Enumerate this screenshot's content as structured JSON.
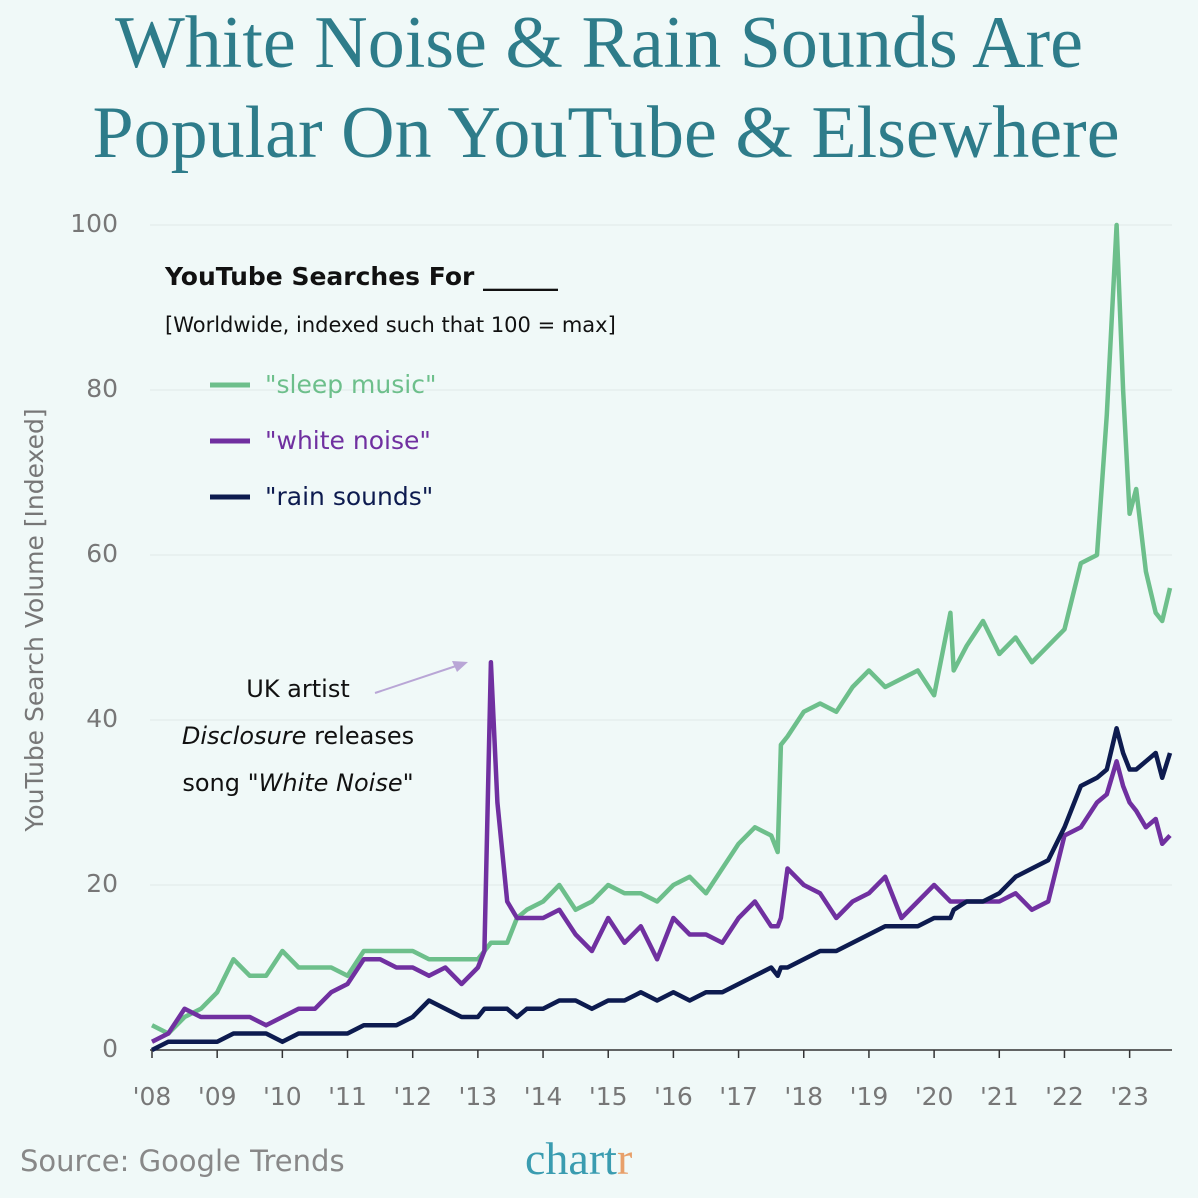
{
  "chart_data": {
    "type": "line",
    "title_lines": [
      "White Noise & Rain Sounds Are",
      "Popular On YouTube & Elsewhere"
    ],
    "subtitle": "YouTube Searches For ______",
    "note": "[Worldwide, indexed such that 100 = max]",
    "y_label": "YouTube Search Volume [Indexed]",
    "source": "Source: Google Trends",
    "brand": "chart",
    "brand_accent": "r",
    "annotation": [
      [
        {
          "text": "UK artist",
          "italic": false
        }
      ],
      [
        {
          "text": "Disclosure",
          "italic": true
        },
        {
          "text": " releases",
          "italic": false
        }
      ],
      [
        {
          "text": "song \"",
          "italic": false
        },
        {
          "text": "White Noise",
          "italic": true
        },
        {
          "text": "\"",
          "italic": false
        }
      ]
    ],
    "x": [
      2008,
      2008.25,
      2008.5,
      2008.75,
      2009,
      2009.25,
      2009.5,
      2009.75,
      2010,
      2010.25,
      2010.5,
      2010.75,
      2011,
      2011.25,
      2011.5,
      2011.75,
      2012,
      2012.25,
      2012.5,
      2012.75,
      2013,
      2013.1,
      2013.2,
      2013.3,
      2013.45,
      2013.6,
      2013.75,
      2014,
      2014.25,
      2014.5,
      2014.75,
      2015,
      2015.25,
      2015.5,
      2015.75,
      2016,
      2016.25,
      2016.5,
      2016.75,
      2017,
      2017.25,
      2017.5,
      2017.6,
      2017.65,
      2017.75,
      2018,
      2018.25,
      2018.5,
      2018.75,
      2019,
      2019.25,
      2019.5,
      2019.75,
      2020,
      2020.25,
      2020.3,
      2020.5,
      2020.75,
      2021,
      2021.25,
      2021.5,
      2021.75,
      2022,
      2022.25,
      2022.5,
      2022.65,
      2022.8,
      2022.9,
      2023,
      2023.1,
      2023.25,
      2023.4,
      2023.5,
      2023.62
    ],
    "series": [
      {
        "name": "\"sleep music\"",
        "color": "#6dbf8b",
        "values": [
          3,
          2,
          4,
          5,
          7,
          11,
          9,
          9,
          12,
          10,
          10,
          10,
          9,
          12,
          12,
          12,
          12,
          11,
          11,
          11,
          11,
          12,
          13,
          13,
          13,
          16,
          17,
          18,
          20,
          17,
          18,
          20,
          19,
          19,
          18,
          20,
          21,
          19,
          22,
          25,
          27,
          26,
          24,
          37,
          38,
          41,
          42,
          41,
          44,
          46,
          44,
          45,
          46,
          43,
          53,
          46,
          49,
          52,
          48,
          50,
          47,
          49,
          51,
          59,
          60,
          77,
          100,
          80,
          65,
          68,
          58,
          53,
          52,
          56
        ]
      },
      {
        "name": "\"white noise\"",
        "color": "#7030a0",
        "values": [
          1,
          2,
          5,
          4,
          4,
          4,
          4,
          3,
          4,
          5,
          5,
          7,
          8,
          11,
          11,
          10,
          10,
          9,
          10,
          8,
          10,
          12,
          47,
          30,
          18,
          16,
          16,
          16,
          17,
          14,
          12,
          16,
          13,
          15,
          11,
          16,
          14,
          14,
          13,
          16,
          18,
          15,
          15,
          16,
          22,
          20,
          19,
          16,
          18,
          19,
          21,
          16,
          18,
          20,
          18,
          18,
          18,
          18,
          18,
          19,
          17,
          18,
          26,
          27,
          30,
          31,
          35,
          32,
          30,
          29,
          27,
          28,
          25,
          26
        ]
      },
      {
        "name": "\"rain sounds\"",
        "color": "#0d1b4f",
        "values": [
          0,
          1,
          1,
          1,
          1,
          2,
          2,
          2,
          1,
          2,
          2,
          2,
          2,
          3,
          3,
          3,
          4,
          6,
          5,
          4,
          4,
          5,
          5,
          5,
          5,
          4,
          5,
          5,
          6,
          6,
          5,
          6,
          6,
          7,
          6,
          7,
          6,
          7,
          7,
          8,
          9,
          10,
          9,
          10,
          10,
          11,
          12,
          12,
          13,
          14,
          15,
          15,
          15,
          16,
          16,
          17,
          18,
          18,
          19,
          21,
          22,
          23,
          27,
          32,
          33,
          34,
          39,
          36,
          34,
          34,
          35,
          36,
          33,
          36
        ]
      }
    ],
    "xlim": [
      2008,
      2023.65
    ],
    "xticks": [
      {
        "value": 2008,
        "label": "'08"
      },
      {
        "value": 2009,
        "label": "'09"
      },
      {
        "value": 2010,
        "label": "'10"
      },
      {
        "value": 2011,
        "label": "'11"
      },
      {
        "value": 2012,
        "label": "'12"
      },
      {
        "value": 2013,
        "label": "'13"
      },
      {
        "value": 2014,
        "label": "'14"
      },
      {
        "value": 2015,
        "label": "'15"
      },
      {
        "value": 2016,
        "label": "'16"
      },
      {
        "value": 2017,
        "label": "'17"
      },
      {
        "value": 2018,
        "label": "'18"
      },
      {
        "value": 2019,
        "label": "'19"
      },
      {
        "value": 2020,
        "label": "'20"
      },
      {
        "value": 2021,
        "label": "'21"
      },
      {
        "value": 2022,
        "label": "'22"
      },
      {
        "value": 2023,
        "label": "'23"
      }
    ],
    "ylim": [
      0,
      100
    ],
    "yticks": [
      0,
      20,
      40,
      60,
      80,
      100
    ],
    "grid": true
  }
}
